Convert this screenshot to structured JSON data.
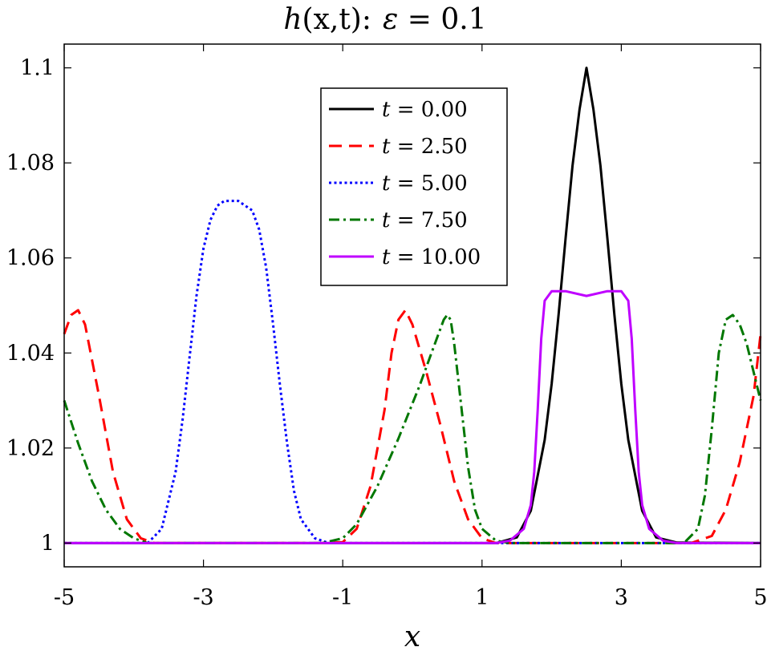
{
  "chart_data": {
    "type": "line",
    "title": "h(x,t): ε = 0.1",
    "title_parts": {
      "func": "h",
      "args": "(x,t):",
      "eps": "ε",
      "eq": " = 0.1"
    },
    "xlabel": "x",
    "ylabel": "",
    "xlim": [
      -5,
      5
    ],
    "ylim": [
      0.995,
      1.105
    ],
    "xticks": [
      -5,
      -3,
      -1,
      1,
      3,
      5
    ],
    "xtick_labels": [
      "-5",
      "-3",
      "-1",
      "1",
      "3",
      "5"
    ],
    "yticks": [
      1,
      1.02,
      1.04,
      1.06,
      1.08,
      1.1
    ],
    "ytick_labels": [
      "1",
      "1.02",
      "1.04",
      "1.06",
      "1.08",
      "1.1"
    ],
    "grid": false,
    "legend_position": "top-center",
    "series": [
      {
        "name": "t = 0.00",
        "label_var": "t",
        "label_rest": " = 0.00",
        "color": "#000000",
        "style": "solid",
        "x": [
          -5,
          1.2,
          1.5,
          1.7,
          1.9,
          2.0,
          2.1,
          2.2,
          2.3,
          2.4,
          2.5,
          2.6,
          2.7,
          2.8,
          2.9,
          3.0,
          3.1,
          3.3,
          3.5,
          3.8,
          5
        ],
        "y": [
          1.0,
          1.0,
          1.0012,
          1.0068,
          1.0217,
          1.0335,
          1.0482,
          1.0642,
          1.0794,
          1.0912,
          1.1,
          1.0912,
          1.0794,
          1.0642,
          1.0482,
          1.0335,
          1.0217,
          1.0068,
          1.0012,
          1.0001,
          1.0
        ]
      },
      {
        "name": "t = 2.50",
        "label_var": "t",
        "label_rest": " = 2.50",
        "color": "#ff0000",
        "style": "dashed",
        "x": [
          -5,
          -4.9,
          -4.8,
          -4.7,
          -4.5,
          -4.3,
          -4.1,
          -3.9,
          -3.7,
          -3.4,
          -1.3,
          -1.0,
          -0.8,
          -0.6,
          -0.4,
          -0.3,
          -0.2,
          -0.1,
          0.0,
          0.2,
          0.4,
          0.6,
          0.8,
          1.0,
          1.2,
          4.0,
          4.3,
          4.5,
          4.7,
          4.9,
          5
        ],
        "y": [
          1.044,
          1.048,
          1.049,
          1.046,
          1.031,
          1.015,
          1.005,
          1.001,
          1.0,
          1.0,
          1.0,
          1.0002,
          1.003,
          1.012,
          1.028,
          1.04,
          1.047,
          1.049,
          1.046,
          1.036,
          1.025,
          1.013,
          1.005,
          1.001,
          1.0,
          1.0,
          1.0015,
          1.007,
          1.017,
          1.031,
          1.044
        ]
      },
      {
        "name": "t = 5.00",
        "label_var": "t",
        "label_rest": " = 5.00",
        "color": "#0000ff",
        "style": "dotted",
        "x": [
          -5,
          -3.8,
          -3.6,
          -3.4,
          -3.3,
          -3.2,
          -3.1,
          -3.0,
          -2.9,
          -2.8,
          -2.7,
          -2.5,
          -2.3,
          -2.2,
          -2.1,
          -2.0,
          -1.9,
          -1.8,
          -1.7,
          -1.6,
          -1.4,
          -1.2,
          5
        ],
        "y": [
          1.0,
          1.0,
          1.003,
          1.015,
          1.026,
          1.039,
          1.052,
          1.062,
          1.068,
          1.071,
          1.072,
          1.072,
          1.07,
          1.066,
          1.058,
          1.046,
          1.033,
          1.021,
          1.011,
          1.005,
          1.001,
          1.0,
          1.0
        ]
      },
      {
        "name": "t = 7.50",
        "label_var": "t",
        "label_rest": " = 7.50",
        "color": "#007700",
        "style": "dashdot",
        "x": [
          -5,
          -4.8,
          -4.6,
          -4.4,
          -4.2,
          -4.0,
          -3.8,
          -3.5,
          -1.3,
          -1.0,
          -0.8,
          -0.5,
          -0.2,
          0.1,
          0.3,
          0.45,
          0.5,
          0.55,
          0.6,
          0.7,
          0.8,
          0.9,
          1.0,
          1.2,
          1.4,
          3.9,
          4.1,
          4.2,
          4.3,
          4.4,
          4.5,
          4.6,
          4.7,
          4.8,
          4.9,
          5
        ],
        "y": [
          1.03,
          1.021,
          1.013,
          1.007,
          1.003,
          1.001,
          1.0,
          1.0,
          1.0,
          1.001,
          1.004,
          1.012,
          1.022,
          1.033,
          1.041,
          1.047,
          1.048,
          1.047,
          1.042,
          1.029,
          1.016,
          1.007,
          1.003,
          1.0005,
          1.0,
          1.0,
          1.003,
          1.01,
          1.024,
          1.04,
          1.047,
          1.048,
          1.046,
          1.042,
          1.036,
          1.03
        ]
      },
      {
        "name": "t = 10.00",
        "label_var": "t",
        "label_rest": " = 10.00",
        "color": "#bf00ff",
        "style": "solid",
        "x": [
          -5,
          1.2,
          1.4,
          1.6,
          1.7,
          1.75,
          1.8,
          1.85,
          1.9,
          2.0,
          2.2,
          2.5,
          2.8,
          3.0,
          3.1,
          3.15,
          3.2,
          3.25,
          3.3,
          3.4,
          3.6,
          3.8,
          5
        ],
        "y": [
          1.0,
          1.0,
          1.0005,
          1.003,
          1.008,
          1.015,
          1.028,
          1.043,
          1.051,
          1.053,
          1.053,
          1.052,
          1.053,
          1.053,
          1.051,
          1.043,
          1.028,
          1.015,
          1.008,
          1.003,
          1.0005,
          1.0,
          1.0
        ]
      }
    ]
  }
}
